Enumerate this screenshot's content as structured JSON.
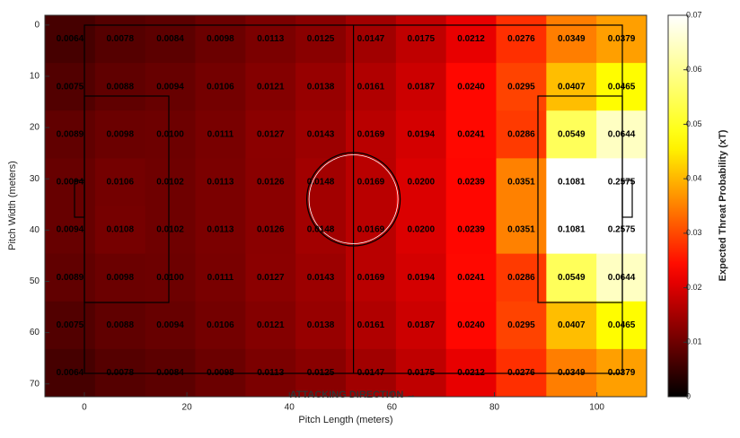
{
  "chart_data": {
    "type": "heatmap",
    "xlabel": "Pitch Length (meters)",
    "ylabel": "Pitch Width (meters)",
    "colorbar_label": "Expected Threat Probability (xT)",
    "annotation": "ATTACKING DIRECTION →",
    "colormap": "hot",
    "clim": [
      0,
      0.07
    ],
    "cticks": [
      0,
      0.01,
      0.02,
      0.03,
      0.04,
      0.05,
      0.06,
      0.07
    ],
    "xlim": [
      -7.7,
      109.7
    ],
    "ylim": [
      -1.9,
      72.5
    ],
    "y_reversed": true,
    "xticks": [
      0,
      20,
      40,
      60,
      80,
      100
    ],
    "yticks": [
      0,
      10,
      20,
      30,
      40,
      50,
      60,
      70
    ],
    "values": [
      [
        0.0064,
        0.0078,
        0.0084,
        0.0098,
        0.0113,
        0.0125,
        0.0147,
        0.0175,
        0.0212,
        0.0276,
        0.0349,
        0.0379
      ],
      [
        0.0075,
        0.0088,
        0.0094,
        0.0106,
        0.0121,
        0.0138,
        0.0161,
        0.0187,
        0.024,
        0.0295,
        0.0407,
        0.0465
      ],
      [
        0.0089,
        0.0098,
        0.01,
        0.0111,
        0.0127,
        0.0143,
        0.0169,
        0.0194,
        0.0241,
        0.0286,
        0.0549,
        0.0644
      ],
      [
        0.0094,
        0.0106,
        0.0102,
        0.0113,
        0.0126,
        0.0148,
        0.0169,
        0.02,
        0.0239,
        0.0351,
        0.1081,
        0.2575
      ],
      [
        0.0094,
        0.0108,
        0.0102,
        0.0113,
        0.0126,
        0.0148,
        0.0169,
        0.02,
        0.0239,
        0.0351,
        0.1081,
        0.2575
      ],
      [
        0.0089,
        0.0098,
        0.01,
        0.0111,
        0.0127,
        0.0143,
        0.0169,
        0.0194,
        0.0241,
        0.0286,
        0.0549,
        0.0644
      ],
      [
        0.0075,
        0.0088,
        0.0094,
        0.0106,
        0.0121,
        0.0138,
        0.0161,
        0.0187,
        0.024,
        0.0295,
        0.0407,
        0.0465
      ],
      [
        0.0064,
        0.0078,
        0.0084,
        0.0098,
        0.0113,
        0.0125,
        0.0147,
        0.0175,
        0.0212,
        0.0276,
        0.0349,
        0.0379
      ]
    ],
    "value_labels": [
      [
        "0.0064",
        "0.0078",
        "0.0084",
        "0.0098",
        "0.0113",
        "0.0125",
        "0.0147",
        "0.0175",
        "0.0212",
        "0.0276",
        "0.0349",
        "0.0379"
      ],
      [
        "0.0075",
        "0.0088",
        "0.0094",
        "0.0106",
        "0.0121",
        "0.0138",
        "0.0161",
        "0.0187",
        "0.0240",
        "0.0295",
        "0.0407",
        "0.0465"
      ],
      [
        "0.0089",
        "0.0098",
        "0.0100",
        "0.0111",
        "0.0127",
        "0.0143",
        "0.0169",
        "0.0194",
        "0.0241",
        "0.0286",
        "0.0549",
        "0.0644"
      ],
      [
        "0.0094",
        "0.0106",
        "0.0102",
        "0.0113",
        "0.0126",
        "0.0148",
        "0.0169",
        "0.0200",
        "0.0239",
        "0.0351",
        "0.1081",
        "0.2575"
      ],
      [
        "0.0094",
        "0.0108",
        "0.0102",
        "0.0113",
        "0.0126",
        "0.0148",
        "0.0169",
        "0.0200",
        "0.0239",
        "0.0351",
        "0.1081",
        "0.2575"
      ],
      [
        "0.0089",
        "0.0098",
        "0.0100",
        "0.0111",
        "0.0127",
        "0.0143",
        "0.0169",
        "0.0194",
        "0.0241",
        "0.0286",
        "0.0549",
        "0.0644"
      ],
      [
        "0.0075",
        "0.0088",
        "0.0094",
        "0.0106",
        "0.0121",
        "0.0138",
        "0.0161",
        "0.0187",
        "0.0240",
        "0.0295",
        "0.0407",
        "0.0465"
      ],
      [
        "0.0064",
        "0.0078",
        "0.0084",
        "0.0098",
        "0.0113",
        "0.0125",
        "0.0147",
        "0.0175",
        "0.0212",
        "0.0276",
        "0.0349",
        "0.0379"
      ]
    ]
  }
}
